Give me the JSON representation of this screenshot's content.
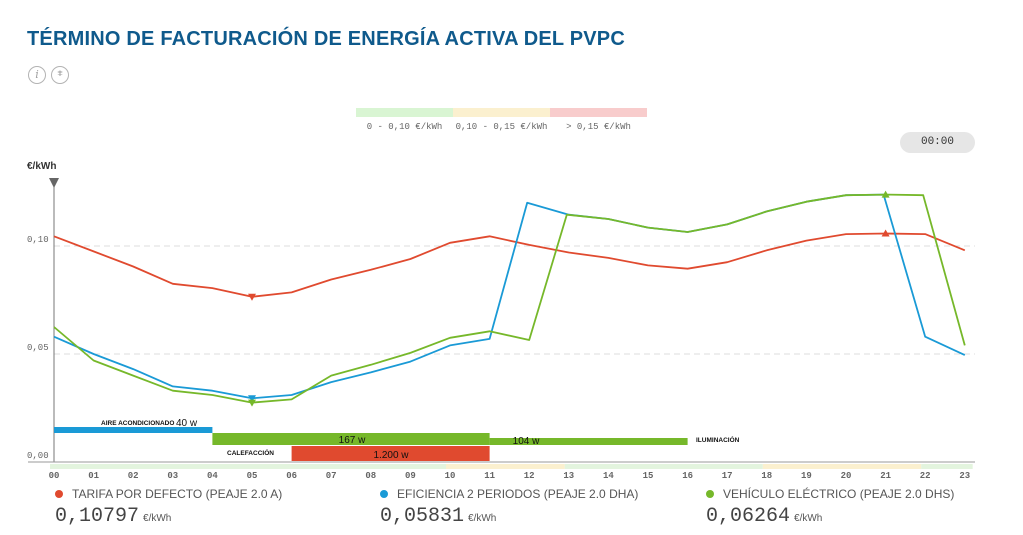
{
  "header": {
    "title": "TÉRMINO DE FACTURACIÓN DE ENERGÍA ACTIVA DEL PVPC",
    "info_icon": "info-icon",
    "chart_icon": "bar-chart-icon",
    "info_glyph": "i",
    "chart_glyph": "⩨"
  },
  "time_display": "00:00",
  "price_legend": [
    {
      "label": "0 - 0,10 €/kWh",
      "color": "#d9f5d3"
    },
    {
      "label": "0,10 - 0,15 €/kWh",
      "color": "#fbf0cf"
    },
    {
      "label": "> 0,15 €/kWh",
      "color": "#f8cccc"
    }
  ],
  "chart_data": {
    "type": "line",
    "ylabel": "€/kWh",
    "ylim": [
      0,
      0.125
    ],
    "yticks": [
      {
        "value": 0,
        "label": "0,00"
      },
      {
        "value": 0.05,
        "label": "0,05"
      },
      {
        "value": 0.1,
        "label": "0,10"
      }
    ],
    "categories": [
      "00",
      "01",
      "02",
      "03",
      "04",
      "05",
      "06",
      "07",
      "08",
      "09",
      "10",
      "11",
      "12",
      "13",
      "14",
      "15",
      "16",
      "17",
      "18",
      "19",
      "20",
      "21",
      "22",
      "23"
    ],
    "grid": "horizontal-dashed",
    "series": [
      {
        "name": "TARIFA POR DEFECTO (PEAJE 2.0 A)",
        "color": "#e04a2f",
        "x": [
          0,
          1,
          2,
          3,
          4,
          5,
          6,
          7,
          8,
          9,
          10,
          11,
          12,
          13,
          14,
          15,
          16,
          17,
          18,
          19,
          20,
          21,
          22,
          23
        ],
        "values": [
          0.1045,
          0.0975,
          0.0905,
          0.0825,
          0.0805,
          0.0765,
          0.0785,
          0.0845,
          0.089,
          0.094,
          0.1015,
          0.1045,
          0.1005,
          0.097,
          0.0945,
          0.091,
          0.0895,
          0.0925,
          0.098,
          0.1025,
          0.1055,
          0.1058,
          0.1055,
          0.098
        ],
        "markers": [
          {
            "x": 5,
            "dir": "down"
          },
          {
            "x": 21,
            "dir": "up"
          }
        ]
      },
      {
        "name": "EFICIENCIA 2 PERIODOS (PEAJE 2.0 DHA)",
        "color": "#1a9ad6",
        "x": [
          0,
          1,
          2,
          3,
          4,
          5,
          6,
          7,
          8,
          9,
          10,
          11,
          11.95,
          13,
          14,
          15,
          16,
          17,
          18,
          19,
          20,
          20.95,
          22,
          23
        ],
        "values": [
          0.058,
          0.05,
          0.043,
          0.035,
          0.033,
          0.0295,
          0.031,
          0.037,
          0.0415,
          0.0465,
          0.054,
          0.057,
          0.12,
          0.1145,
          0.1125,
          0.1085,
          0.1065,
          0.11,
          0.116,
          0.1205,
          0.1235,
          0.1238,
          0.058,
          0.0495
        ],
        "markers": [
          {
            "x": 5,
            "dir": "down"
          }
        ]
      },
      {
        "name": "VEHÍCULO ELÉCTRICO (PEAJE 2.0 DHS)",
        "color": "#76b82a",
        "x": [
          0,
          1,
          2,
          3,
          4,
          5,
          6,
          7,
          8,
          9,
          10,
          11,
          12,
          12.95,
          14,
          15,
          16,
          17,
          18,
          19,
          20,
          21,
          21.95,
          23
        ],
        "values": [
          0.0625,
          0.047,
          0.04,
          0.033,
          0.031,
          0.0275,
          0.029,
          0.04,
          0.045,
          0.0505,
          0.0575,
          0.0605,
          0.0565,
          0.1145,
          0.1125,
          0.1085,
          0.1065,
          0.11,
          0.116,
          0.1205,
          0.1235,
          0.1238,
          0.1235,
          0.054
        ],
        "markers": [
          {
            "x": 5,
            "dir": "down"
          },
          {
            "x": 21,
            "dir": "up"
          }
        ]
      }
    ],
    "appliances": [
      {
        "label": "AIRE ACONDICIONADO",
        "power": "40 w",
        "start": 0,
        "end": 4,
        "color": "#1a9ad6"
      },
      {
        "label": "CALEFACCIÓN",
        "power": "1.200 w",
        "start": 6,
        "end": 11,
        "color": "#e04a2f"
      },
      {
        "label": "",
        "power": "167 w",
        "start": 4,
        "end": 11,
        "color": "#76b82a"
      },
      {
        "label": "ILUMINACIÓN",
        "power": "104 w",
        "start": 11,
        "end": 16,
        "color": "#76b82a"
      }
    ]
  },
  "footer": [
    {
      "name": "TARIFA POR DEFECTO (PEAJE 2.0 A)",
      "value": "0,10797",
      "unit": "€/kWh",
      "color": "#e04a2f"
    },
    {
      "name": "EFICIENCIA 2 PERIODOS (PEAJE 2.0 DHA)",
      "value": "0,05831",
      "unit": "€/kWh",
      "color": "#1a9ad6"
    },
    {
      "name": "VEHÍCULO ELÉCTRICO (PEAJE 2.0 DHS)",
      "value": "0,06264",
      "unit": "€/kWh",
      "color": "#76b82a"
    }
  ]
}
